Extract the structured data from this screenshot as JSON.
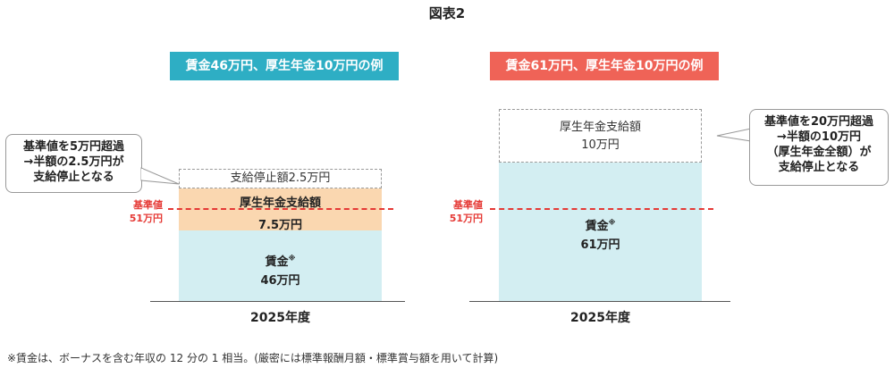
{
  "title": "図表2",
  "left": {
    "banner": "賃金46万円、厚生年金10万円の例",
    "stopped_box": "支給停止額2.5万円",
    "pension_line1": "厚生年金支給額",
    "pension_line2": "7.5万円",
    "wage_line1": "賃金",
    "wage_mark": "※",
    "wage_line2": "46万円",
    "ref_label1": "基準値",
    "ref_label2": "51万円",
    "callout": [
      "基準値を5万円超過",
      "→半額の2.5万円が",
      "支給停止となる"
    ],
    "year": "2025年度"
  },
  "right": {
    "banner": "賃金61万円、厚生年金10万円の例",
    "pension_box_line1": "厚生年金支給額",
    "pension_box_line2": "10万円",
    "wage_line1": "賃金",
    "wage_mark": "※",
    "wage_line2": "61万円",
    "ref_label1": "基準値",
    "ref_label2": "51万円",
    "callout": [
      "基準値を20万円超過",
      "→半額の10万円",
      "（厚生年金全額）が",
      "支給停止となる"
    ],
    "year": "2025年度"
  },
  "colors": {
    "left_banner": "#2eaec4",
    "right_banner": "#ef6357",
    "wage_fill": "#d3eef2",
    "pension_fill": "#fad7b0",
    "reference_line": "#e53935"
  },
  "footnote": "※賃金は、ボーナスを含む年収の 12 分の 1 相当。(厳密には標準報酬月額・標準賞与額を用いて計算)"
}
